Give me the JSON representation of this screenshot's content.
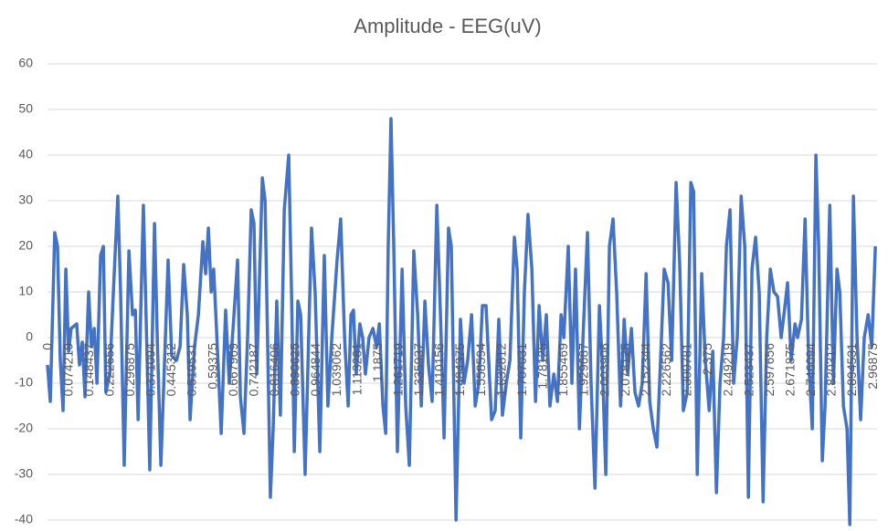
{
  "chart_data": {
    "type": "line",
    "title": "Amplitude - EEG(uV)",
    "color": "#4472c4",
    "grid": true,
    "x": [
      0,
      0.01,
      0.026,
      0.036,
      0.046,
      0.056,
      0.066,
      0.076,
      0.085,
      0.105,
      0.115,
      0.125,
      0.135,
      0.148,
      0.158,
      0.168,
      0.178,
      0.191,
      0.201,
      0.21,
      0.224,
      0.237,
      0.253,
      0.263,
      0.276,
      0.293,
      0.306,
      0.316,
      0.326,
      0.345,
      0.355,
      0.368,
      0.385,
      0.395,
      0.408,
      0.434,
      0.447,
      0.464,
      0.477,
      0.49,
      0.503,
      0.513,
      0.529,
      0.543,
      0.559,
      0.569,
      0.579,
      0.589,
      0.598,
      0.608,
      0.625,
      0.641,
      0.654,
      0.671,
      0.684,
      0.694,
      0.707,
      0.72,
      0.733,
      0.743,
      0.753,
      0.773,
      0.783,
      0.802,
      0.812,
      0.825,
      0.838,
      0.852,
      0.868,
      0.878,
      0.888,
      0.901,
      0.911,
      0.927,
      0.95,
      0.963,
      0.98,
      0.996,
      1.009,
      1.023,
      1.042,
      1.055,
      1.069,
      1.082,
      1.092,
      1.101,
      1.111,
      1.124,
      1.134,
      1.144,
      1.157,
      1.171,
      1.184,
      1.194,
      1.207,
      1.217,
      1.226,
      1.236,
      1.246,
      1.259,
      1.276,
      1.289,
      1.302,
      1.318,
      1.332,
      1.345,
      1.358,
      1.371,
      1.384,
      1.401,
      1.414,
      1.427,
      1.443,
      1.453,
      1.47,
      1.486,
      1.499,
      1.512,
      1.526,
      1.539,
      1.552,
      1.565,
      1.578,
      1.598,
      1.611,
      1.624,
      1.637,
      1.651,
      1.664,
      1.68,
      1.69,
      1.703,
      1.716,
      1.729,
      1.743,
      1.756,
      1.769,
      1.782,
      1.795,
      1.808,
      1.822,
      1.835,
      1.848,
      1.858,
      1.874,
      1.887,
      1.9,
      1.914,
      1.927,
      1.943,
      1.956,
      1.97,
      1.986,
      1.996,
      2.009,
      2.022,
      2.035,
      2.048,
      2.062,
      2.075,
      2.088,
      2.101,
      2.114,
      2.127,
      2.14,
      2.154,
      2.167,
      2.18,
      2.193,
      2.206,
      2.219,
      2.233,
      2.246,
      2.262,
      2.275,
      2.288,
      2.302,
      2.315,
      2.325,
      2.338,
      2.354,
      2.367,
      2.381,
      2.394,
      2.407,
      2.42,
      2.433,
      2.443,
      2.456,
      2.469,
      2.482,
      2.496,
      2.509,
      2.522,
      2.535,
      2.548,
      2.561,
      2.575,
      2.588,
      2.601,
      2.614,
      2.627,
      2.64,
      2.65,
      2.663,
      2.676,
      2.69,
      2.699,
      2.713,
      2.726,
      2.739,
      2.752,
      2.765,
      2.775,
      2.788,
      2.798,
      2.815,
      2.828,
      2.841,
      2.851,
      2.864,
      2.877,
      2.887,
      2.9,
      2.913,
      2.926,
      2.939,
      2.953,
      2.966,
      2.979
    ],
    "values": [
      -6,
      -14,
      23,
      20,
      -5,
      -16,
      15,
      -3,
      2,
      3,
      -6,
      -1,
      -13,
      10,
      -2,
      2,
      -10,
      18,
      20,
      -12,
      -8,
      10,
      31,
      10,
      -28,
      19,
      5,
      6,
      -18,
      29,
      4,
      -29,
      25,
      0,
      -28,
      17,
      -4,
      -5,
      -2,
      16,
      5,
      -18,
      -2,
      5,
      21,
      14,
      24,
      10,
      15,
      2,
      -21,
      6,
      -10,
      5,
      17,
      -13,
      -21,
      0,
      28,
      25,
      -8,
      35,
      30,
      -35,
      -20,
      8,
      -17,
      28,
      40,
      10,
      -25,
      8,
      5,
      -30,
      24,
      10,
      -25,
      18,
      -15,
      0,
      17,
      26,
      0,
      -15,
      5,
      6,
      -8,
      3,
      0,
      -8,
      0,
      2,
      -2,
      3,
      -15,
      -21,
      20,
      48,
      20,
      -25,
      15,
      -15,
      -28,
      19,
      5,
      -15,
      8,
      -6,
      -14,
      29,
      5,
      -22,
      24,
      20,
      -40,
      4,
      -10,
      -5,
      5,
      -15,
      -10,
      7,
      7,
      -18,
      -16,
      4,
      -17,
      -10,
      -5,
      22,
      15,
      -22,
      10,
      27,
      15,
      -14,
      7,
      -5,
      5,
      -15,
      -8,
      -14,
      5,
      0,
      20,
      -10,
      15,
      -20,
      0,
      23,
      -10,
      -33,
      7,
      -5,
      -30,
      20,
      26,
      10,
      -15,
      4,
      -8,
      2,
      -12,
      -15,
      -10,
      14,
      -14,
      -20,
      -24,
      -5,
      15,
      12,
      -5,
      34,
      16,
      -16,
      -12,
      34,
      32,
      -30,
      14,
      -5,
      -16,
      -3,
      -34,
      -10,
      0,
      20,
      28,
      -10,
      0,
      31,
      20,
      -35,
      15,
      22,
      10,
      -36,
      0,
      15,
      10,
      9,
      0,
      5,
      12,
      -5,
      3,
      0,
      4,
      26,
      -5,
      -20,
      40,
      20,
      -27,
      -15,
      29,
      -10,
      15,
      10,
      -15,
      -20,
      -41,
      31,
      0,
      -18,
      0,
      5,
      -2,
      20
    ],
    "xlim": [
      0,
      2.985
    ],
    "ylim": [
      -40,
      60
    ],
    "xticks": [
      0,
      0.074219,
      0.148437,
      0.222656,
      0.296875,
      0.371094,
      0.445312,
      0.519531,
      0.59375,
      0.667969,
      0.742187,
      0.816406,
      0.890625,
      0.964844,
      1.039062,
      1.113281,
      1.1875,
      1.261719,
      1.335937,
      1.410156,
      1.484375,
      1.558594,
      1.632812,
      1.707031,
      1.78125,
      1.855469,
      1.929687,
      2.003906,
      2.078125,
      2.152344,
      2.226562,
      2.300781,
      2.375,
      2.449219,
      2.523437,
      2.597656,
      2.671875,
      2.746094,
      2.820312,
      2.894531,
      2.96875
    ],
    "yticks": [
      -40,
      -30,
      -20,
      -10,
      0,
      10,
      20,
      30,
      40,
      50,
      60
    ]
  }
}
